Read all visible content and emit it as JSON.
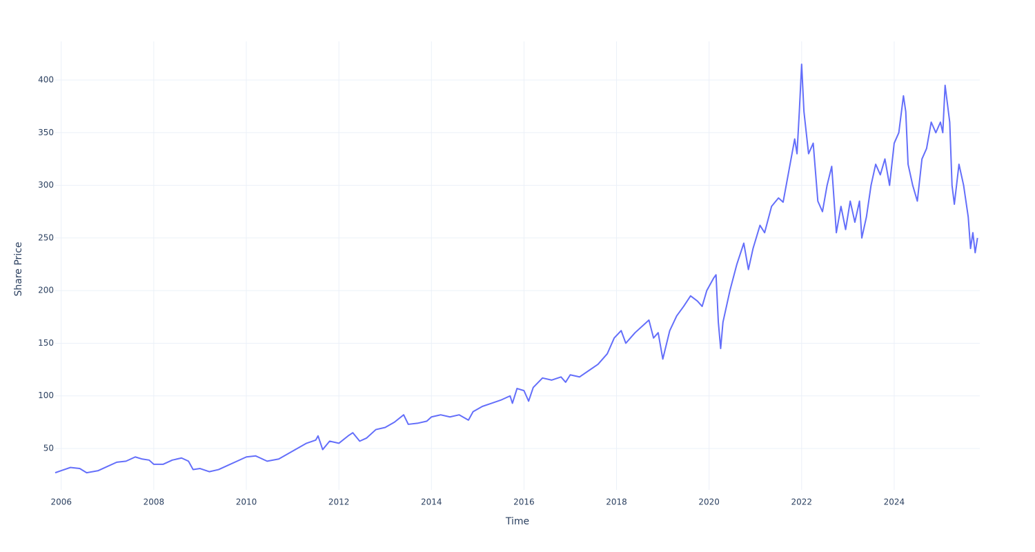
{
  "chart_data": {
    "type": "line",
    "x_label": "Time",
    "y_label": "Share Price",
    "color": "#636efa",
    "grid": true,
    "xlim": [
      2005.87,
      2025.85
    ],
    "ylim": [
      10.7,
      436.7
    ],
    "xticks": [
      2006,
      2008,
      2010,
      2012,
      2014,
      2016,
      2018,
      2020,
      2022,
      2024
    ],
    "yticks": [
      50,
      100,
      150,
      200,
      250,
      300,
      350,
      400
    ],
    "x": [
      2005.87,
      2006.0,
      2006.2,
      2006.4,
      2006.55,
      2006.8,
      2007.0,
      2007.2,
      2007.4,
      2007.6,
      2007.75,
      2007.9,
      2008.0,
      2008.2,
      2008.4,
      2008.6,
      2008.75,
      2008.85,
      2009.0,
      2009.2,
      2009.4,
      2009.6,
      2009.8,
      2010.0,
      2010.2,
      2010.3,
      2010.45,
      2010.7,
      2010.9,
      2011.1,
      2011.3,
      2011.5,
      2011.55,
      2011.65,
      2011.8,
      2012.0,
      2012.2,
      2012.3,
      2012.45,
      2012.6,
      2012.8,
      2013.0,
      2013.2,
      2013.4,
      2013.5,
      2013.7,
      2013.9,
      2014.0,
      2014.2,
      2014.4,
      2014.6,
      2014.8,
      2014.9,
      2015.1,
      2015.3,
      2015.5,
      2015.7,
      2015.75,
      2015.85,
      2016.0,
      2016.1,
      2016.2,
      2016.4,
      2016.6,
      2016.8,
      2016.9,
      2017.0,
      2017.2,
      2017.4,
      2017.6,
      2017.8,
      2017.95,
      2018.1,
      2018.2,
      2018.4,
      2018.6,
      2018.7,
      2018.8,
      2018.9,
      2019.0,
      2019.15,
      2019.3,
      2019.45,
      2019.6,
      2019.75,
      2019.85,
      2019.95,
      2020.1,
      2020.15,
      2020.2,
      2020.25,
      2020.3,
      2020.45,
      2020.6,
      2020.75,
      2020.85,
      2020.95,
      2021.1,
      2021.2,
      2021.35,
      2021.5,
      2021.6,
      2021.75,
      2021.85,
      2021.9,
      2021.95,
      2022.0,
      2022.05,
      2022.15,
      2022.25,
      2022.35,
      2022.45,
      2022.55,
      2022.65,
      2022.75,
      2022.85,
      2022.95,
      2023.05,
      2023.15,
      2023.25,
      2023.3,
      2023.4,
      2023.5,
      2023.6,
      2023.7,
      2023.8,
      2023.9,
      2024.0,
      2024.1,
      2024.2,
      2024.25,
      2024.3,
      2024.4,
      2024.5,
      2024.6,
      2024.7,
      2024.8,
      2024.9,
      2025.0,
      2025.05,
      2025.1,
      2025.2,
      2025.25,
      2025.3,
      2025.4,
      2025.5,
      2025.6,
      2025.65,
      2025.7,
      2025.75,
      2025.8
    ],
    "values": [
      27,
      29,
      32,
      31,
      27,
      29,
      33,
      37,
      38,
      42,
      40,
      39,
      35,
      35,
      39,
      41,
      38,
      30,
      31,
      28,
      30,
      34,
      38,
      42,
      43,
      41,
      38,
      40,
      45,
      50,
      55,
      58,
      62,
      49,
      57,
      55,
      62,
      65,
      57,
      60,
      68,
      70,
      75,
      82,
      73,
      74,
      76,
      80,
      82,
      80,
      82,
      77,
      85,
      90,
      93,
      96,
      100,
      93,
      107,
      105,
      95,
      108,
      117,
      115,
      118,
      113,
      120,
      118,
      124,
      130,
      140,
      155,
      162,
      150,
      160,
      168,
      172,
      155,
      160,
      135,
      162,
      176,
      185,
      195,
      190,
      185,
      200,
      212,
      215,
      170,
      145,
      170,
      200,
      225,
      245,
      220,
      240,
      262,
      255,
      280,
      288,
      284,
      320,
      344,
      330,
      370,
      415,
      370,
      330,
      340,
      285,
      275,
      300,
      318,
      255,
      280,
      258,
      285,
      265,
      285,
      250,
      270,
      300,
      320,
      310,
      325,
      300,
      340,
      350,
      385,
      370,
      320,
      300,
      285,
      325,
      335,
      360,
      350,
      360,
      350,
      395,
      360,
      300,
      282,
      320,
      300,
      270,
      240,
      255,
      236,
      250
    ]
  }
}
